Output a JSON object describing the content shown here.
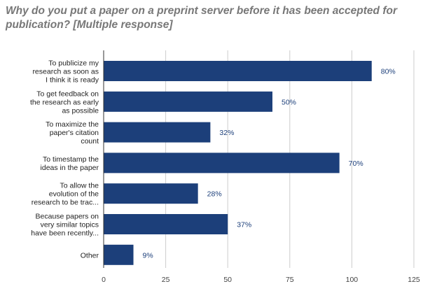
{
  "chart_data": {
    "type": "bar",
    "orientation": "horizontal",
    "title": "Why do you put a paper on a preprint server before it has been accepted for publication? [Multiple response]",
    "categories": [
      [
        "To publicize my",
        "research as soon as",
        "I think it is ready"
      ],
      [
        "To get feedback on",
        "the research as early",
        "as possible"
      ],
      [
        "To maximize the",
        "paper's citation",
        "count"
      ],
      [
        "To timestamp the",
        "ideas in the paper"
      ],
      [
        "To allow the",
        "evolution of the",
        "research to be trac..."
      ],
      [
        "Because papers on",
        "very similar topics",
        "have been recently..."
      ],
      [
        "Other"
      ]
    ],
    "values": [
      108,
      68,
      43,
      95,
      38,
      50,
      12
    ],
    "data_labels": [
      "80%",
      "50%",
      "32%",
      "70%",
      "28%",
      "37%",
      "9%"
    ],
    "xlim": [
      0,
      125
    ],
    "xticks": [
      0,
      25,
      50,
      75,
      100,
      125
    ],
    "grid": true,
    "legend": "none",
    "bar_color": "#1c3f7a",
    "grid_color": "#cccccc"
  }
}
